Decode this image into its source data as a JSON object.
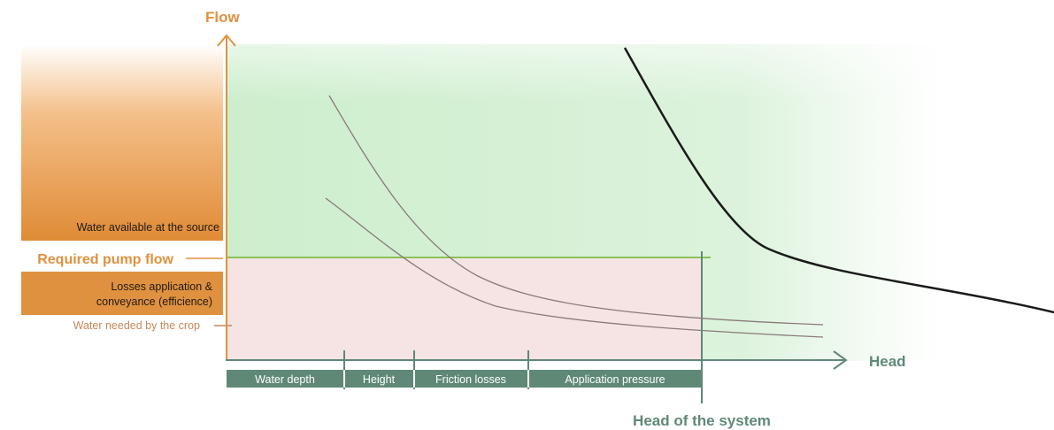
{
  "axes": {
    "y_title": "Flow",
    "x_title": "Head"
  },
  "flow_labels": {
    "source": "Water available at the source",
    "required": "Required pump flow",
    "losses_line1": "Losses application &",
    "losses_line2": "conveyance (efficience)",
    "crop": "Water needed by the crop"
  },
  "head_segments": [
    {
      "label": "Water depth"
    },
    {
      "label": "Height"
    },
    {
      "label": "Friction losses"
    },
    {
      "label": "Application pressure"
    }
  ],
  "head_of_system": "Head of the system",
  "colors": {
    "orange": "#e0913f",
    "orange_text": "#e08a35",
    "crop_text": "#c6875a",
    "teal": "#5f8877",
    "green_line": "#8cc15a",
    "green_fill": "#d8f0d8",
    "pink_fill": "#f6e4e4",
    "curve_gray": "#8a7a7a",
    "pump_curve": "#1a1a1a"
  }
}
